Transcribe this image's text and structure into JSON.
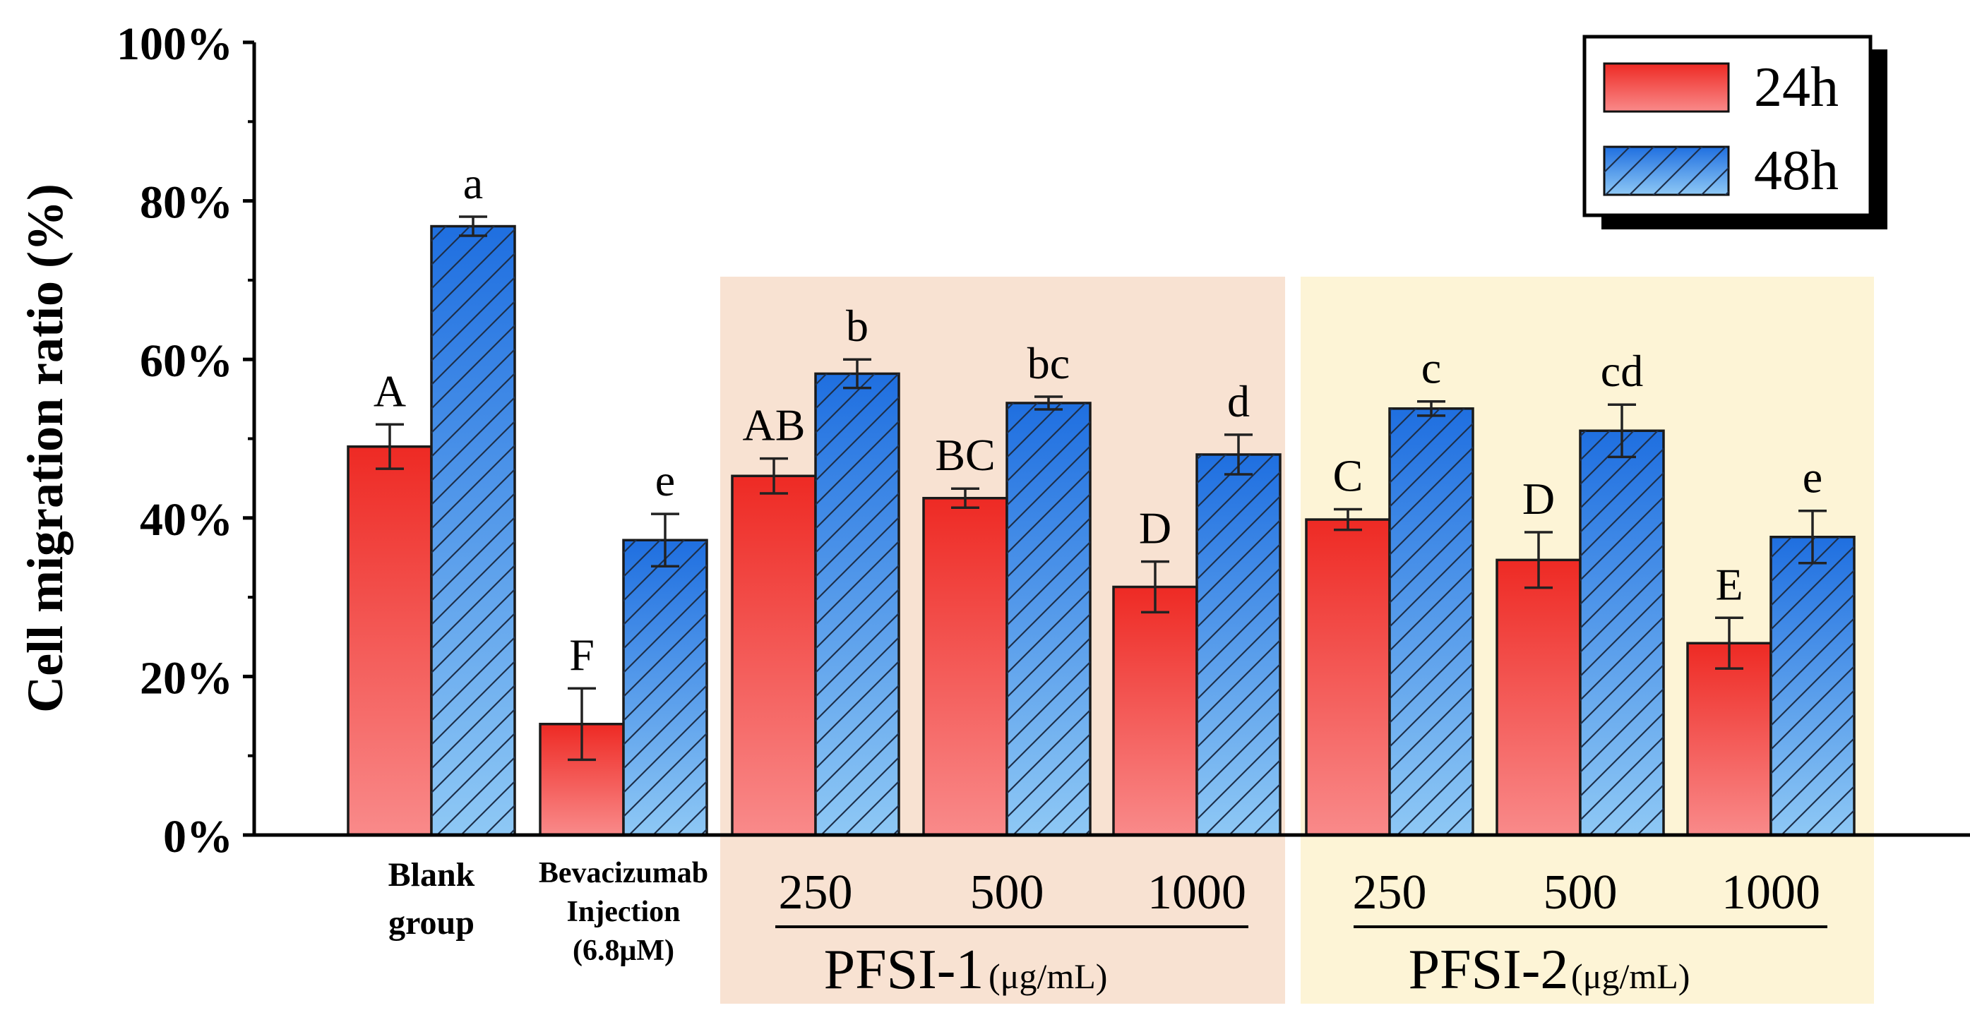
{
  "chart_data": {
    "type": "bar",
    "ylabel": "Cell migration ratio (%)",
    "ylim": [
      0,
      100
    ],
    "yticks": [
      "0%",
      "20%",
      "40%",
      "60%",
      "80%",
      "100%"
    ],
    "grid": false,
    "legend_position": "top-right",
    "groups": [
      {
        "label_lines": [
          "Blank",
          "group"
        ],
        "shading": null
      },
      {
        "label_lines": [
          "Bevacizumab",
          "Injection",
          "(6.8μM)"
        ],
        "shading": null
      },
      {
        "label": "250",
        "shading": "PFSI-1"
      },
      {
        "label": "500",
        "shading": "PFSI-1"
      },
      {
        "label": "1000",
        "shading": "PFSI-1"
      },
      {
        "label": "250",
        "shading": "PFSI-2"
      },
      {
        "label": "500",
        "shading": "PFSI-2"
      },
      {
        "label": "1000",
        "shading": "PFSI-2"
      }
    ],
    "series": [
      {
        "name": "24h",
        "values": [
          49.0,
          14.0,
          45.3,
          42.5,
          31.3,
          39.8,
          34.7,
          24.2
        ],
        "errors": [
          2.8,
          4.5,
          2.2,
          1.2,
          3.2,
          1.3,
          3.5,
          3.2
        ],
        "labels": [
          "A",
          "F",
          "AB",
          "BC",
          "D",
          "C",
          "D",
          "E"
        ],
        "color_top": "#ee2a24",
        "color_bottom": "#f98a8a",
        "hatched": false
      },
      {
        "name": "48h",
        "values": [
          76.8,
          37.2,
          58.2,
          54.5,
          48.0,
          53.8,
          51.0,
          37.6
        ],
        "errors": [
          1.2,
          3.3,
          1.8,
          0.8,
          2.5,
          0.9,
          3.3,
          3.3
        ],
        "labels": [
          "a",
          "e",
          "b",
          "bc",
          "d",
          "c",
          "cd",
          "e"
        ],
        "color_top": "#1f6fe0",
        "color_bottom": "#8ec8f5",
        "hatched": true
      }
    ],
    "sections": [
      {
        "name": "PFSI-1",
        "unit": "(μg/mL)",
        "color": "#f8e2d2"
      },
      {
        "name": "PFSI-2",
        "unit": "(μg/mL)",
        "color": "#fdf4d6"
      }
    ]
  }
}
